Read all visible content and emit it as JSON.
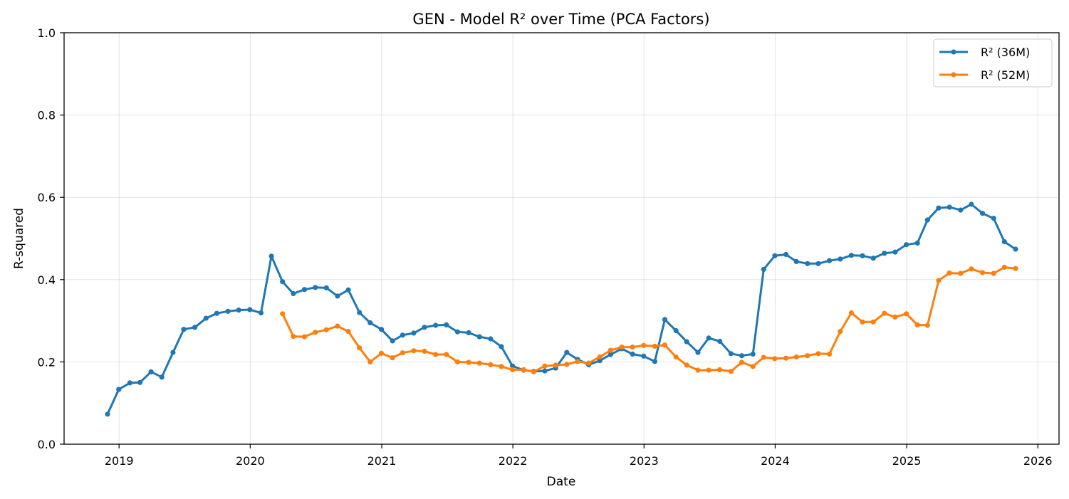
{
  "chart_data": {
    "type": "line",
    "title": "GEN - Model R² over Time (PCA Factors)",
    "xlabel": "Date",
    "ylabel": "R-squared",
    "ylim": [
      0.0,
      1.0
    ],
    "xlim": [
      "2018-08-01",
      "2026-03-01"
    ],
    "x_ticks": [
      "2019",
      "2020",
      "2021",
      "2022",
      "2023",
      "2024",
      "2025",
      "2026"
    ],
    "y_ticks": [
      "0.0",
      "0.2",
      "0.4",
      "0.6",
      "0.8",
      "1.0"
    ],
    "grid": true,
    "legend_position": "top-right",
    "series": [
      {
        "name": "R² (36M)",
        "color": "#1f77b4",
        "x": [
          "2018-11-30",
          "2018-12-31",
          "2019-01-31",
          "2019-02-28",
          "2019-03-31",
          "2019-04-30",
          "2019-05-31",
          "2019-06-30",
          "2019-07-31",
          "2019-08-31",
          "2019-09-30",
          "2019-10-31",
          "2019-11-30",
          "2019-12-31",
          "2020-01-31",
          "2020-02-29",
          "2020-03-31",
          "2020-04-30",
          "2020-05-31",
          "2020-06-30",
          "2020-07-31",
          "2020-08-31",
          "2020-09-30",
          "2020-10-31",
          "2020-11-30",
          "2020-12-31",
          "2021-01-31",
          "2021-02-28",
          "2021-03-31",
          "2021-04-30",
          "2021-05-31",
          "2021-06-30",
          "2021-07-31",
          "2021-08-31",
          "2021-09-30",
          "2021-10-31",
          "2021-11-30",
          "2021-12-31",
          "2022-01-31",
          "2022-02-28",
          "2022-03-31",
          "2022-04-30",
          "2022-05-31",
          "2022-06-30",
          "2022-07-31",
          "2022-08-31",
          "2022-09-30",
          "2022-10-31",
          "2022-11-30",
          "2022-12-31",
          "2023-01-31",
          "2023-02-28",
          "2023-03-31",
          "2023-04-30",
          "2023-05-31",
          "2023-06-30",
          "2023-07-31",
          "2023-08-31",
          "2023-09-30",
          "2023-10-31",
          "2023-11-30",
          "2023-12-31",
          "2024-01-31",
          "2024-02-29",
          "2024-03-31",
          "2024-04-30",
          "2024-05-31",
          "2024-06-30",
          "2024-07-31",
          "2024-08-31",
          "2024-09-30",
          "2024-10-31",
          "2024-11-30",
          "2024-12-31",
          "2025-01-31",
          "2025-02-28",
          "2025-03-31",
          "2025-04-30",
          "2025-05-31",
          "2025-06-30",
          "2025-07-31",
          "2025-08-31",
          "2025-09-30",
          "2025-10-31"
        ],
        "y": [
          0.073,
          0.133,
          0.149,
          0.15,
          0.176,
          0.163,
          0.223,
          0.279,
          0.284,
          0.306,
          0.318,
          0.323,
          0.326,
          0.327,
          0.319,
          0.457,
          0.395,
          0.366,
          0.376,
          0.381,
          0.38,
          0.36,
          0.375,
          0.32,
          0.295,
          0.279,
          0.251,
          0.265,
          0.27,
          0.284,
          0.289,
          0.29,
          0.273,
          0.271,
          0.261,
          0.256,
          0.237,
          0.19,
          0.18,
          0.177,
          0.178,
          0.185,
          0.223,
          0.206,
          0.193,
          0.203,
          0.218,
          0.232,
          0.219,
          0.214,
          0.201,
          0.303,
          0.276,
          0.249,
          0.223,
          0.258,
          0.25,
          0.22,
          0.215,
          0.219,
          0.425,
          0.458,
          0.461,
          0.444,
          0.439,
          0.439,
          0.446,
          0.45,
          0.459,
          0.458,
          0.452,
          0.464,
          0.467,
          0.485,
          0.489,
          0.545,
          0.574,
          0.576,
          0.569,
          0.583,
          0.561,
          0.549,
          0.492,
          0.474
        ]
      },
      {
        "name": "R² (52M)",
        "color": "#ff7f0e",
        "x": [
          "2020-03-31",
          "2020-04-30",
          "2020-05-31",
          "2020-06-30",
          "2020-07-31",
          "2020-08-31",
          "2020-09-30",
          "2020-10-31",
          "2020-11-30",
          "2020-12-31",
          "2021-01-31",
          "2021-02-28",
          "2021-03-31",
          "2021-04-30",
          "2021-05-31",
          "2021-06-30",
          "2021-07-31",
          "2021-08-31",
          "2021-09-30",
          "2021-10-31",
          "2021-11-30",
          "2021-12-31",
          "2022-01-31",
          "2022-02-28",
          "2022-03-31",
          "2022-04-30",
          "2022-05-31",
          "2022-06-30",
          "2022-07-31",
          "2022-08-31",
          "2022-09-30",
          "2022-10-31",
          "2022-11-30",
          "2022-12-31",
          "2023-01-31",
          "2023-02-28",
          "2023-03-31",
          "2023-04-30",
          "2023-05-31",
          "2023-06-30",
          "2023-07-31",
          "2023-08-31",
          "2023-09-30",
          "2023-10-31",
          "2023-11-30",
          "2023-12-31",
          "2024-01-31",
          "2024-02-29",
          "2024-03-31",
          "2024-04-30",
          "2024-05-31",
          "2024-06-30",
          "2024-07-31",
          "2024-08-31",
          "2024-09-30",
          "2024-10-31",
          "2024-11-30",
          "2024-12-31",
          "2025-01-31",
          "2025-02-28",
          "2025-03-31",
          "2025-04-30",
          "2025-05-31",
          "2025-06-30",
          "2025-07-31",
          "2025-08-31",
          "2025-09-30",
          "2025-10-31"
        ],
        "y": [
          0.317,
          0.262,
          0.261,
          0.272,
          0.278,
          0.287,
          0.274,
          0.234,
          0.2,
          0.221,
          0.21,
          0.222,
          0.227,
          0.226,
          0.218,
          0.218,
          0.2,
          0.199,
          0.197,
          0.193,
          0.189,
          0.181,
          0.181,
          0.176,
          0.19,
          0.192,
          0.194,
          0.201,
          0.197,
          0.212,
          0.228,
          0.236,
          0.236,
          0.24,
          0.238,
          0.241,
          0.212,
          0.192,
          0.18,
          0.18,
          0.181,
          0.177,
          0.199,
          0.189,
          0.211,
          0.208,
          0.209,
          0.212,
          0.215,
          0.22,
          0.219,
          0.274,
          0.319,
          0.297,
          0.297,
          0.318,
          0.309,
          0.317,
          0.29,
          0.289,
          0.398,
          0.416,
          0.415,
          0.426,
          0.417,
          0.415,
          0.43,
          0.427
        ]
      }
    ]
  }
}
